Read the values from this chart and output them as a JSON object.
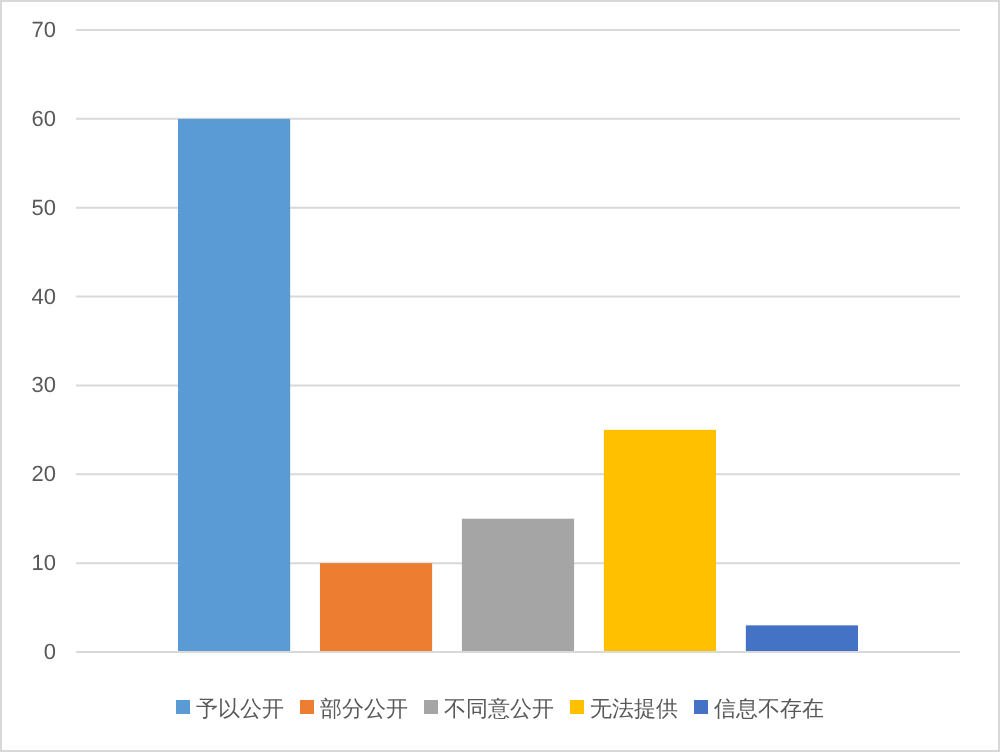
{
  "chart_data": {
    "type": "bar",
    "categories": [
      null
    ],
    "series": [
      {
        "name": "予以公开",
        "color": "#5b9bd5",
        "values": [
          60
        ]
      },
      {
        "name": "部分公开",
        "color": "#ed7d31",
        "values": [
          10
        ]
      },
      {
        "name": "不同意公开",
        "color": "#a5a5a5",
        "values": [
          15
        ]
      },
      {
        "name": "无法提供",
        "color": "#ffc000",
        "values": [
          25
        ]
      },
      {
        "name": "信息不存在",
        "color": "#4472c4",
        "values": [
          3
        ]
      }
    ],
    "ylim": [
      0,
      70
    ],
    "yticks": [
      0,
      10,
      20,
      30,
      40,
      50,
      60,
      70
    ],
    "grid": "y",
    "legend": "bottom"
  }
}
